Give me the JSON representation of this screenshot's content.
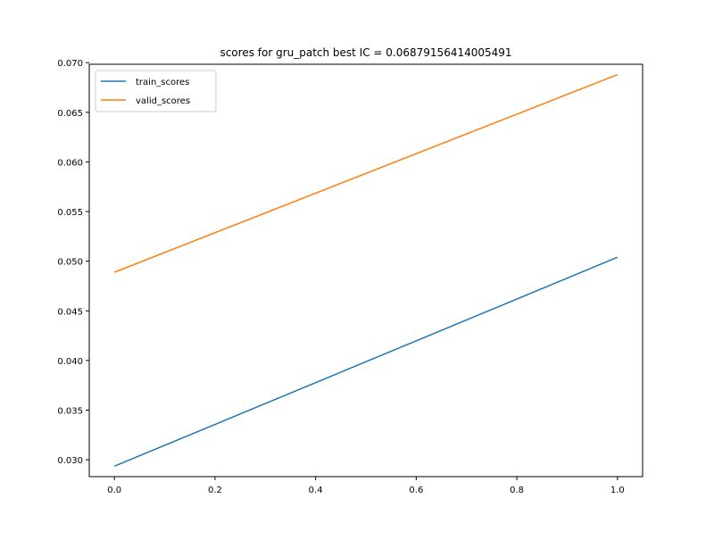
{
  "chart_data": {
    "type": "line",
    "title": "scores for gru_patch best IC = 0.06879156414005491",
    "xlabel": "",
    "ylabel": "",
    "x": [
      0,
      1
    ],
    "series": [
      {
        "name": "train_scores",
        "color": "#1f77b4",
        "values": [
          0.02935,
          0.0504
        ]
      },
      {
        "name": "valid_scores",
        "color": "#ff7f0e",
        "values": [
          0.04889,
          0.06879
        ]
      }
    ],
    "xlim": [
      -0.05,
      1.05
    ],
    "ylim": [
      0.0283,
      0.06984
    ],
    "xticks": [
      0.0,
      0.2,
      0.4,
      0.6,
      0.8,
      1.0
    ],
    "xtick_labels": [
      "0.0",
      "0.2",
      "0.4",
      "0.6",
      "0.8",
      "1.0"
    ],
    "yticks": [
      0.03,
      0.035,
      0.04,
      0.045,
      0.05,
      0.055,
      0.06,
      0.065,
      0.07
    ],
    "ytick_labels": [
      "0.030",
      "0.035",
      "0.040",
      "0.045",
      "0.050",
      "0.055",
      "0.060",
      "0.065",
      "0.070"
    ],
    "legend_position": "top-left",
    "grid": false
  }
}
